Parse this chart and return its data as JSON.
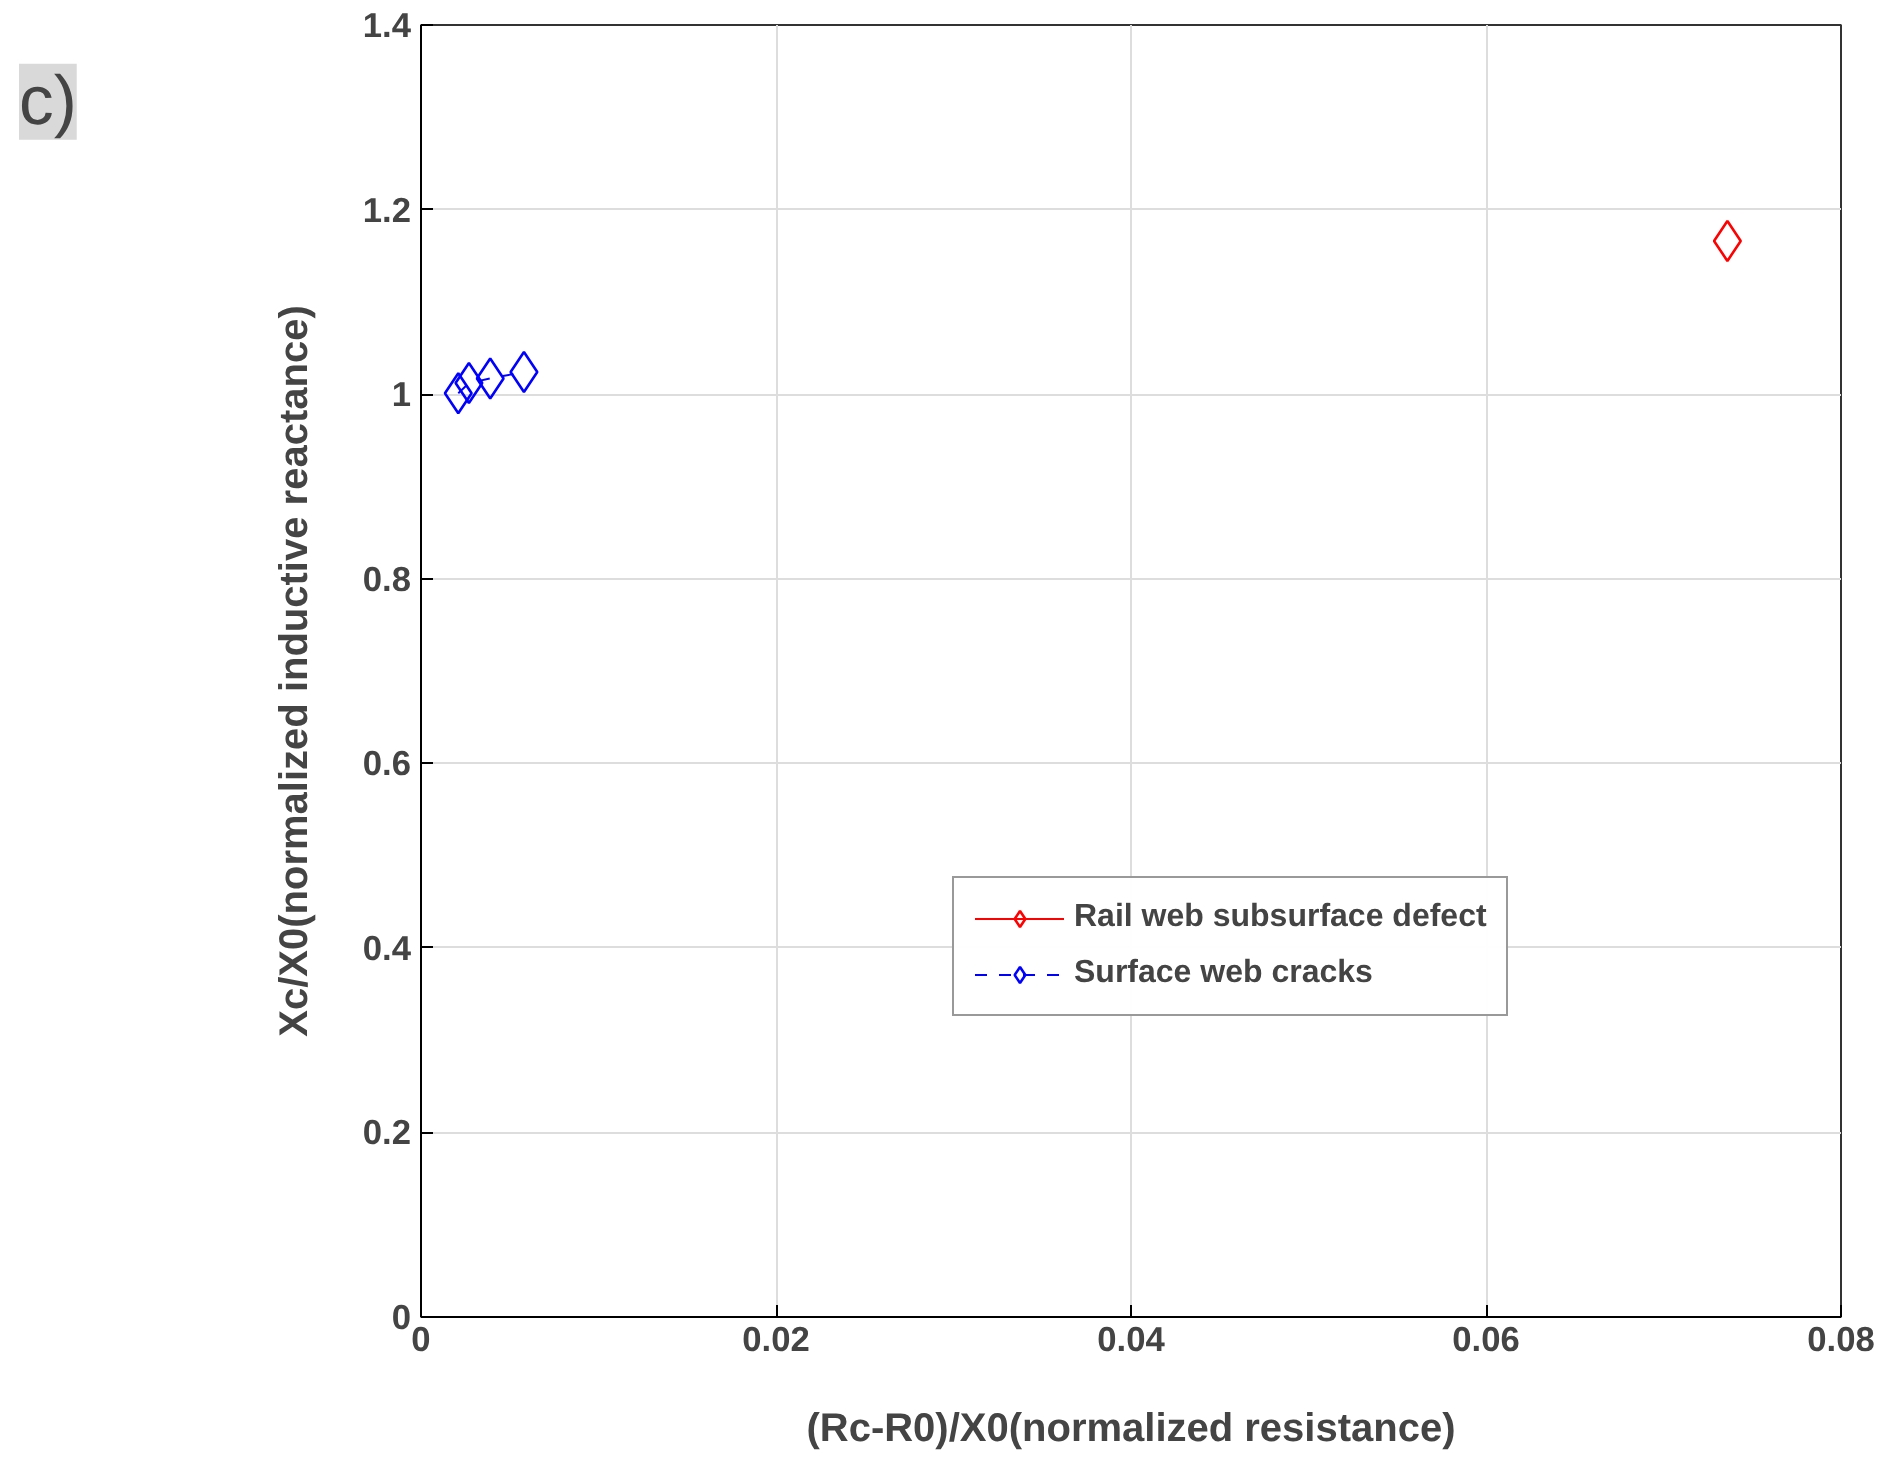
{
  "chart_data": {
    "type": "line",
    "xlabel": "(Rc-R0)/X0(normalized resistance)",
    "ylabel": "Xc/X0(normalized inductive reactance)",
    "annotations": [
      "c)"
    ],
    "xlim": [
      0,
      0.08
    ],
    "xticks": [
      0,
      0.02,
      0.04,
      0.06,
      0.08
    ],
    "ylim": [
      0,
      1.4
    ],
    "yticks": [
      0,
      0.2,
      0.4,
      0.6,
      0.8,
      1,
      1.2,
      1.4
    ],
    "grid": true,
    "legend": "right",
    "marker": "diamond",
    "series": [
      {
        "name": "Rail web subsurface defect",
        "color": "#ff0000",
        "line_style": "solid",
        "x": [
          0.0736
        ],
        "values": [
          1.166
        ]
      },
      {
        "name": "Surface web cracks",
        "color": "#0000ff",
        "line_style": "dashed",
        "x": [
          0.0021,
          0.0027,
          0.0039,
          0.0058
        ],
        "values": [
          1.001,
          1.012,
          1.017,
          1.024
        ]
      }
    ]
  }
}
